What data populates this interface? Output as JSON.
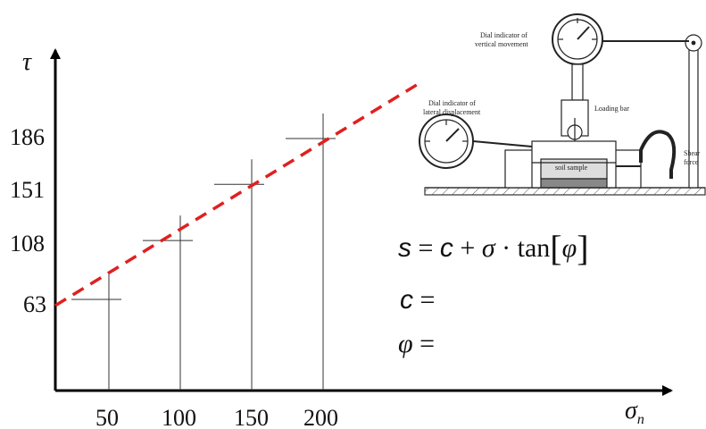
{
  "chart_data": {
    "type": "scatter",
    "x_axis": {
      "symbol": "σ",
      "subscript": "n",
      "ticks": [
        "50",
        "100",
        "150",
        "200"
      ]
    },
    "y_axis": {
      "symbol": "τ",
      "ticks": [
        "63",
        "108",
        "151",
        "186"
      ]
    },
    "points": [
      {
        "x": 50,
        "y": 63
      },
      {
        "x": 100,
        "y": 108
      },
      {
        "x": 150,
        "y": 151
      },
      {
        "x": 200,
        "y": 186
      }
    ],
    "trendline": {
      "style": "dashed",
      "color": "#e02020",
      "from": {
        "x": 0,
        "y": 50
      },
      "to": {
        "x": 255,
        "y": 220
      }
    },
    "grid": false
  },
  "equations": {
    "line1": "s = c + σ · tan[φ]",
    "line2": "c =",
    "line3": "φ ="
  },
  "apparatus": {
    "label_vertical": "Dial indicator of vertical movement",
    "label_lateral": "Dial indicator of lateral displacement",
    "label_loading": "Loading bar",
    "label_sample": "soil sample",
    "label_shear": "Shear force"
  },
  "colors": {
    "trend": "#e02020",
    "axis": "#000000",
    "mark": "#333333"
  }
}
